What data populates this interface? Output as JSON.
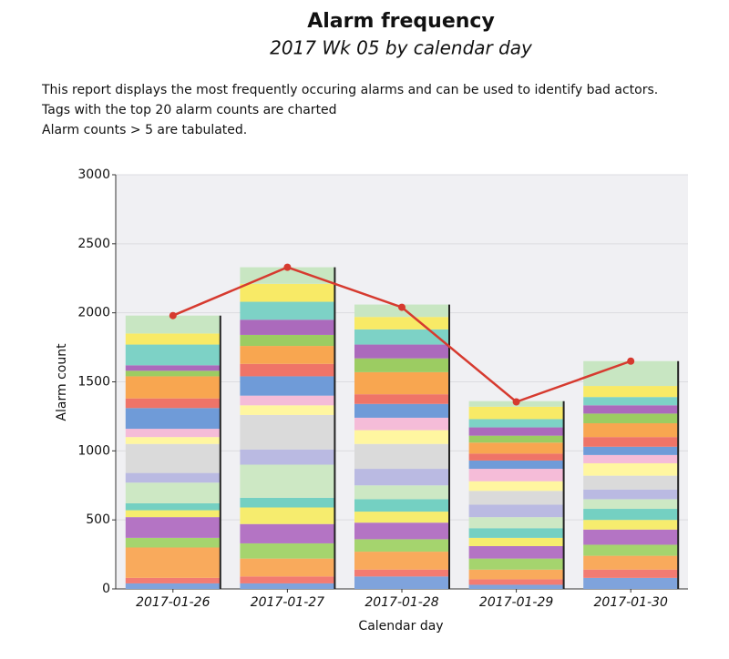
{
  "chart_data": {
    "type": "stacked-bar",
    "title": "Alarm frequency",
    "subtitle": "2017 Wk 05 by calendar day",
    "description": [
      "This report displays the most frequently occuring alarms and can be used to identify bad actors.",
      "Tags with the top 20 alarm counts are charted",
      "Alarm counts > 5 are tabulated."
    ],
    "x_label": "Calendar day",
    "y_label": "Alarm count",
    "categories": [
      "2017-01-26",
      "2017-01-27",
      "2017-01-28",
      "2017-01-29",
      "2017-01-30"
    ],
    "ylim": [
      0,
      3000
    ],
    "yticks": [
      0,
      500,
      1000,
      1500,
      2000,
      2500,
      3000
    ],
    "grid": true,
    "series": [
      {
        "color": "#7fa3dc",
        "values": [
          40,
          40,
          90,
          30,
          80
        ]
      },
      {
        "color": "#f27b72",
        "values": [
          40,
          50,
          50,
          40,
          60
        ]
      },
      {
        "color": "#f9aa5c",
        "values": [
          220,
          130,
          130,
          70,
          100
        ]
      },
      {
        "color": "#a5d46e",
        "values": [
          70,
          110,
          90,
          80,
          80
        ]
      },
      {
        "color": "#b474c4",
        "values": [
          150,
          140,
          120,
          90,
          110
        ]
      },
      {
        "color": "#f6ec6e",
        "values": [
          50,
          120,
          80,
          60,
          70
        ]
      },
      {
        "color": "#74d0c2",
        "values": [
          50,
          70,
          90,
          70,
          80
        ]
      },
      {
        "color": "#cde8c4",
        "values": [
          150,
          240,
          100,
          80,
          70
        ]
      },
      {
        "color": "#babae2",
        "values": [
          70,
          110,
          120,
          90,
          70
        ]
      },
      {
        "color": "#dadada",
        "values": [
          210,
          250,
          180,
          100,
          100
        ]
      },
      {
        "color": "#fff6a0",
        "values": [
          50,
          70,
          100,
          70,
          90
        ]
      },
      {
        "color": "#f5bcd8",
        "values": [
          60,
          70,
          90,
          90,
          60
        ]
      },
      {
        "color": "#6f9bd8",
        "values": [
          150,
          140,
          100,
          60,
          60
        ]
      },
      {
        "color": "#ef7468",
        "values": [
          70,
          90,
          70,
          50,
          70
        ]
      },
      {
        "color": "#f8a650",
        "values": [
          160,
          130,
          160,
          80,
          100
        ]
      },
      {
        "color": "#9ccc62",
        "values": [
          40,
          80,
          100,
          50,
          70
        ]
      },
      {
        "color": "#ab6abc",
        "values": [
          40,
          110,
          100,
          60,
          60
        ]
      },
      {
        "color": "#7dd2c6",
        "values": [
          150,
          130,
          110,
          60,
          60
        ]
      },
      {
        "color": "#f8ea66",
        "values": [
          80,
          130,
          90,
          90,
          80
        ]
      },
      {
        "color": "#c8e6c2",
        "values": [
          130,
          120,
          90,
          40,
          180
        ]
      }
    ],
    "line": {
      "color": "#d63a2f",
      "values": [
        1980,
        2330,
        2040,
        1355,
        1650
      ]
    }
  }
}
